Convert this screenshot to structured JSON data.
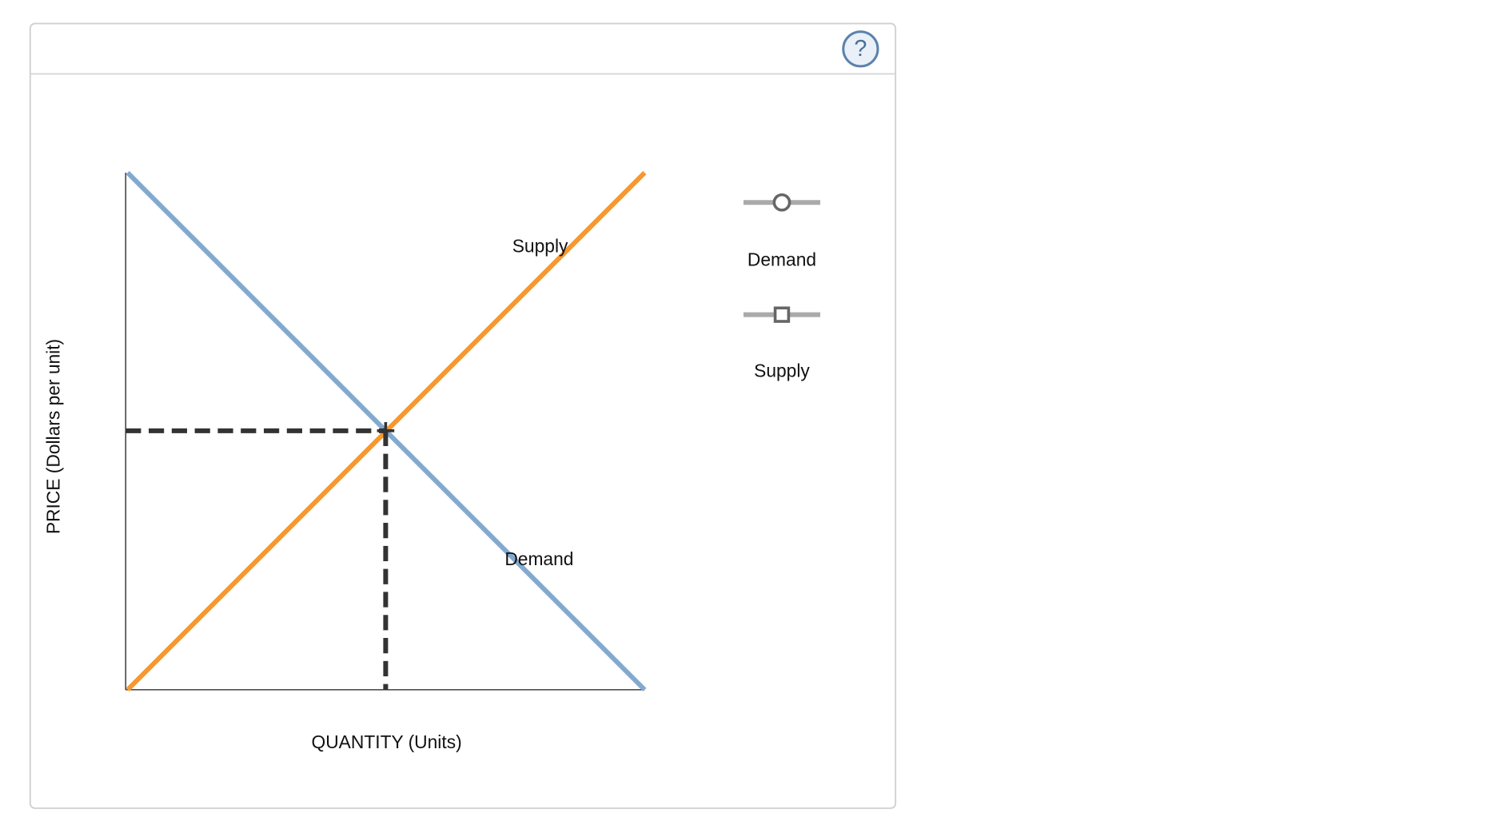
{
  "help": "?",
  "graph": {
    "x_axis_label": "QUANTITY (Units)",
    "y_axis_label": "PRICE (Dollars per unit)",
    "curve_labels": {
      "supply": "Supply",
      "demand": "Demand"
    }
  },
  "legend": [
    "Demand",
    "Supply"
  ]
}
